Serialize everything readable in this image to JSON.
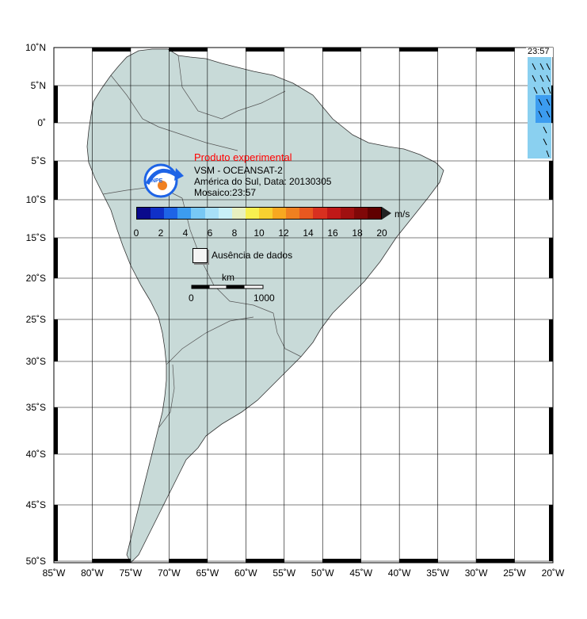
{
  "title": {
    "experimental": "Produto experimental",
    "line1": "VSM - OCEANSAT-2",
    "line2": "América do Sul, Data: 20130305",
    "line3": "Mosaico:23:57"
  },
  "logo_text": "INPE",
  "pass_time": "23:57",
  "colorbar": {
    "unit": "m/s",
    "ticks": [
      "0",
      "2",
      "4",
      "6",
      "8",
      "10",
      "12",
      "14",
      "16",
      "18",
      "20"
    ],
    "colors": [
      "#0a0a8c",
      "#1030c8",
      "#1e64e6",
      "#3c9cf0",
      "#78c8f5",
      "#a8e0f8",
      "#c8f0f8",
      "#e8f0c0",
      "#f8f050",
      "#f8d030",
      "#f8a820",
      "#f08020",
      "#e85820",
      "#d83020",
      "#c01818",
      "#a01010",
      "#800808",
      "#600000"
    ]
  },
  "legend": {
    "no_data": "Ausência de dados"
  },
  "scale": {
    "unit": "km",
    "min": "0",
    "max": "1000"
  },
  "lat_labels": [
    "10˚N",
    "5˚N",
    "0˚",
    "5˚S",
    "10˚S",
    "15˚S",
    "20˚S",
    "25˚S",
    "30˚S",
    "35˚S",
    "40˚S",
    "45˚S",
    "50˚S"
  ],
  "lon_labels": [
    "85˚W",
    "80˚W",
    "75˚W",
    "70˚W",
    "65˚W",
    "60˚W",
    "55˚W",
    "50˚W",
    "45˚W",
    "40˚W",
    "35˚W",
    "30˚W",
    "25˚W",
    "20˚W"
  ],
  "colors": {
    "land": "#c8dad8",
    "ocean": "#ffffff",
    "grid": "#000000",
    "border": "#000000",
    "wind": "#8ad0f0"
  }
}
